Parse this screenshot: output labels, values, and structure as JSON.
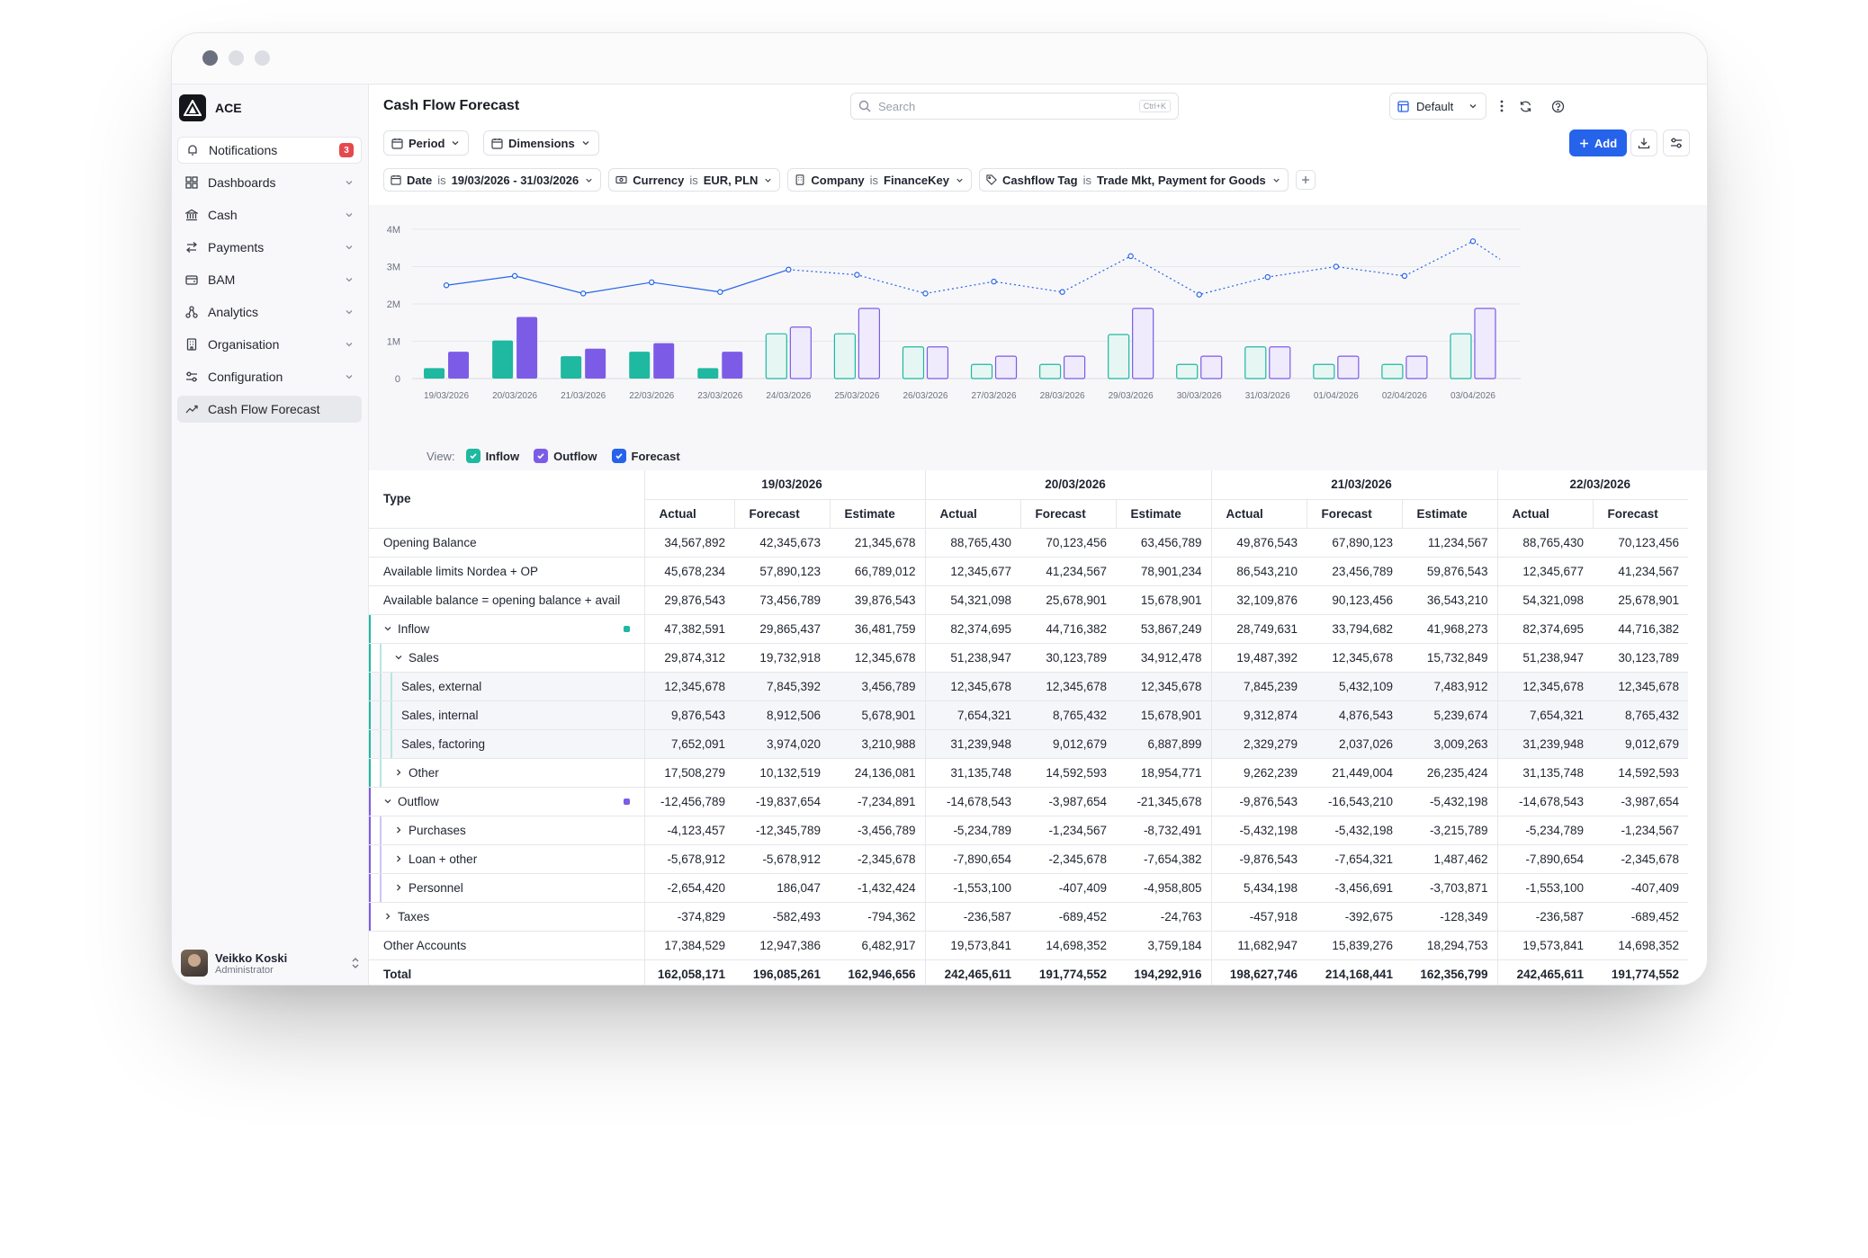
{
  "brand": {
    "name": "ACE"
  },
  "sidebar": {
    "items": [
      {
        "label": "Notifications",
        "icon": "bell-icon",
        "badge": "3"
      },
      {
        "label": "Dashboards",
        "icon": "grid-icon"
      },
      {
        "label": "Cash",
        "icon": "bank-icon"
      },
      {
        "label": "Payments",
        "icon": "arrows-icon"
      },
      {
        "label": "BAM",
        "icon": "wallet-icon"
      },
      {
        "label": "Analytics",
        "icon": "analytics-icon"
      },
      {
        "label": "Organisation",
        "icon": "building-icon"
      },
      {
        "label": "Configuration",
        "icon": "settings-icon"
      },
      {
        "label": "Cash Flow Forecast",
        "icon": "trend-icon"
      }
    ],
    "user": {
      "name": "Veikko Koski",
      "role": "Administrator"
    }
  },
  "header": {
    "title": "Cash Flow Forecast",
    "search_placeholder": "Search",
    "search_shortcut": "Ctrl+K",
    "view_label": "Default"
  },
  "toolbar": {
    "period_label": "Period",
    "dimensions_label": "Dimensions",
    "add_label": "Add"
  },
  "filters": [
    {
      "key": "Date",
      "op": "is",
      "value": "19/03/2026 - 31/03/2026"
    },
    {
      "key": "Currency",
      "op": "is",
      "value": "EUR, PLN"
    },
    {
      "key": "Company",
      "op": "is",
      "value": "FinanceKey"
    },
    {
      "key": "Cashflow Tag",
      "op": "is",
      "value": "Trade Mkt, Payment for Goods"
    }
  ],
  "colors": {
    "inflow": "#1fb8a0",
    "outflow": "#7c5ce6",
    "forecast": "#2563eb",
    "accent": "#2563eb"
  },
  "chart_data": {
    "type": "bar",
    "categories": [
      "19/03/2026",
      "20/03/2026",
      "21/03/2026",
      "22/03/2026",
      "23/03/2026",
      "24/03/2026",
      "25/03/2026",
      "26/03/2026",
      "27/03/2026",
      "28/03/2026",
      "29/03/2026",
      "30/03/2026",
      "31/03/2026",
      "01/04/2026",
      "02/04/2026",
      "03/04/2026"
    ],
    "actual_count": 5,
    "series": [
      {
        "name": "Inflow",
        "type": "bar",
        "values": [
          0.28,
          1.02,
          0.6,
          0.72,
          0.28,
          1.2,
          1.2,
          0.85,
          0.38,
          0.38,
          1.18,
          0.38,
          0.85,
          0.38,
          0.38,
          1.2
        ]
      },
      {
        "name": "Outflow",
        "type": "bar",
        "values": [
          0.72,
          1.65,
          0.8,
          0.95,
          0.72,
          1.38,
          1.88,
          0.85,
          0.6,
          0.6,
          1.88,
          0.6,
          0.85,
          0.6,
          0.6,
          1.88
        ]
      },
      {
        "name": "Forecast",
        "type": "line",
        "values": [
          2.5,
          2.75,
          2.28,
          2.58,
          2.32,
          2.92,
          2.78,
          2.28,
          2.6,
          2.32,
          3.28,
          2.25,
          2.72,
          3.0,
          2.75,
          3.68
        ]
      }
    ],
    "yticks": [
      "0",
      "1M",
      "2M",
      "3M",
      "4M"
    ],
    "ylim": [
      0,
      4
    ],
    "legend_prefix": "View:"
  },
  "table": {
    "type_header": "Type",
    "sub_headers": [
      "Actual",
      "Forecast",
      "Estimate"
    ],
    "dates": [
      "19/03/2026",
      "20/03/2026",
      "21/03/2026",
      "22/03/2026"
    ],
    "rows": [
      {
        "label": "Opening Balance",
        "level": 0,
        "values": [
          "34,567,892",
          "42,345,673",
          "21,345,678",
          "88,765,430",
          "70,123,456",
          "63,456,789",
          "49,876,543",
          "67,890,123",
          "11,234,567",
          "88,765,430",
          "70,123,456"
        ]
      },
      {
        "label": "Available limits Nordea + OP",
        "level": 0,
        "values": [
          "45,678,234",
          "57,890,123",
          "66,789,012",
          "12,345,677",
          "41,234,567",
          "78,901,234",
          "86,543,210",
          "23,456,789",
          "59,876,543",
          "12,345,677",
          "41,234,567"
        ]
      },
      {
        "label": "Available balance = opening balance + avail",
        "level": 0,
        "values": [
          "29,876,543",
          "73,456,789",
          "39,876,543",
          "54,321,098",
          "25,678,901",
          "15,678,901",
          "32,109,876",
          "90,123,456",
          "36,543,210",
          "54,321,098",
          "25,678,901"
        ]
      },
      {
        "label": "Inflow",
        "level": 0,
        "caret": "open",
        "group": "inflow",
        "values": [
          "47,382,591",
          "29,865,437",
          "36,481,759",
          "82,374,695",
          "44,716,382",
          "53,867,249",
          "28,749,631",
          "33,794,682",
          "41,968,273",
          "82,374,695",
          "44,716,382"
        ]
      },
      {
        "label": "Sales",
        "level": 1,
        "caret": "open",
        "group": "inflow",
        "values": [
          "29,874,312",
          "19,732,918",
          "12,345,678",
          "51,238,947",
          "30,123,789",
          "34,912,478",
          "19,487,392",
          "12,345,678",
          "15,732,849",
          "51,238,947",
          "30,123,789"
        ]
      },
      {
        "label": "Sales, external",
        "level": 2,
        "group": "inflow",
        "values": [
          "12,345,678",
          "7,845,392",
          "3,456,789",
          "12,345,678",
          "12,345,678",
          "12,345,678",
          "7,845,239",
          "5,432,109",
          "7,483,912",
          "12,345,678",
          "12,345,678"
        ]
      },
      {
        "label": "Sales, internal",
        "level": 2,
        "group": "inflow",
        "values": [
          "9,876,543",
          "8,912,506",
          "5,678,901",
          "7,654,321",
          "8,765,432",
          "15,678,901",
          "9,312,874",
          "4,876,543",
          "5,239,674",
          "7,654,321",
          "8,765,432"
        ]
      },
      {
        "label": "Sales, factoring",
        "level": 2,
        "group": "inflow",
        "values": [
          "7,652,091",
          "3,974,020",
          "3,210,988",
          "31,239,948",
          "9,012,679",
          "6,887,899",
          "2,329,279",
          "2,037,026",
          "3,009,263",
          "31,239,948",
          "9,012,679"
        ]
      },
      {
        "label": "Other",
        "level": 1,
        "caret": "closed",
        "group": "inflow",
        "values": [
          "17,508,279",
          "10,132,519",
          "24,136,081",
          "31,135,748",
          "14,592,593",
          "18,954,771",
          "9,262,239",
          "21,449,004",
          "26,235,424",
          "31,135,748",
          "14,592,593"
        ]
      },
      {
        "label": "Outflow",
        "level": 0,
        "caret": "open",
        "group": "outflow",
        "values": [
          "-12,456,789",
          "-19,837,654",
          "-7,234,891",
          "-14,678,543",
          "-3,987,654",
          "-21,345,678",
          "-9,876,543",
          "-16,543,210",
          "-5,432,198",
          "-14,678,543",
          "-3,987,654"
        ]
      },
      {
        "label": "Purchases",
        "level": 1,
        "caret": "closed",
        "group": "outflow",
        "values": [
          "-4,123,457",
          "-12,345,789",
          "-3,456,789",
          "-5,234,789",
          "-1,234,567",
          "-8,732,491",
          "-5,432,198",
          "-5,432,198",
          "-3,215,789",
          "-5,234,789",
          "-1,234,567"
        ]
      },
      {
        "label": "Loan + other",
        "level": 1,
        "caret": "closed",
        "group": "outflow",
        "values": [
          "-5,678,912",
          "-5,678,912",
          "-2,345,678",
          "-7,890,654",
          "-2,345,678",
          "-7,654,382",
          "-9,876,543",
          "-7,654,321",
          "1,487,462",
          "-7,890,654",
          "-2,345,678"
        ]
      },
      {
        "label": "Personnel",
        "level": 1,
        "caret": "closed",
        "group": "outflow",
        "values": [
          "-2,654,420",
          "186,047",
          "-1,432,424",
          "-1,553,100",
          "-407,409",
          "-4,958,805",
          "5,434,198",
          "-3,456,691",
          "-3,703,871",
          "-1,553,100",
          "-407,409"
        ]
      },
      {
        "label": "Taxes",
        "level": 0,
        "caret": "closed",
        "group": "taxes",
        "values": [
          "-374,829",
          "-582,493",
          "-794,362",
          "-236,587",
          "-689,452",
          "-24,763",
          "-457,918",
          "-392,675",
          "-128,349",
          "-236,587",
          "-689,452"
        ]
      },
      {
        "label": "Other Accounts",
        "level": 0,
        "values": [
          "17,384,529",
          "12,947,386",
          "6,482,917",
          "19,573,841",
          "14,698,352",
          "3,759,184",
          "11,682,947",
          "15,839,276",
          "18,294,753",
          "19,573,841",
          "14,698,352"
        ]
      },
      {
        "label": "Total",
        "level": 0,
        "total": true,
        "values": [
          "162,058,171",
          "196,085,261",
          "162,946,656",
          "242,465,611",
          "191,774,552",
          "194,292,916",
          "198,627,746",
          "214,168,441",
          "162,356,799",
          "242,465,611",
          "191,774,552"
        ]
      }
    ]
  }
}
